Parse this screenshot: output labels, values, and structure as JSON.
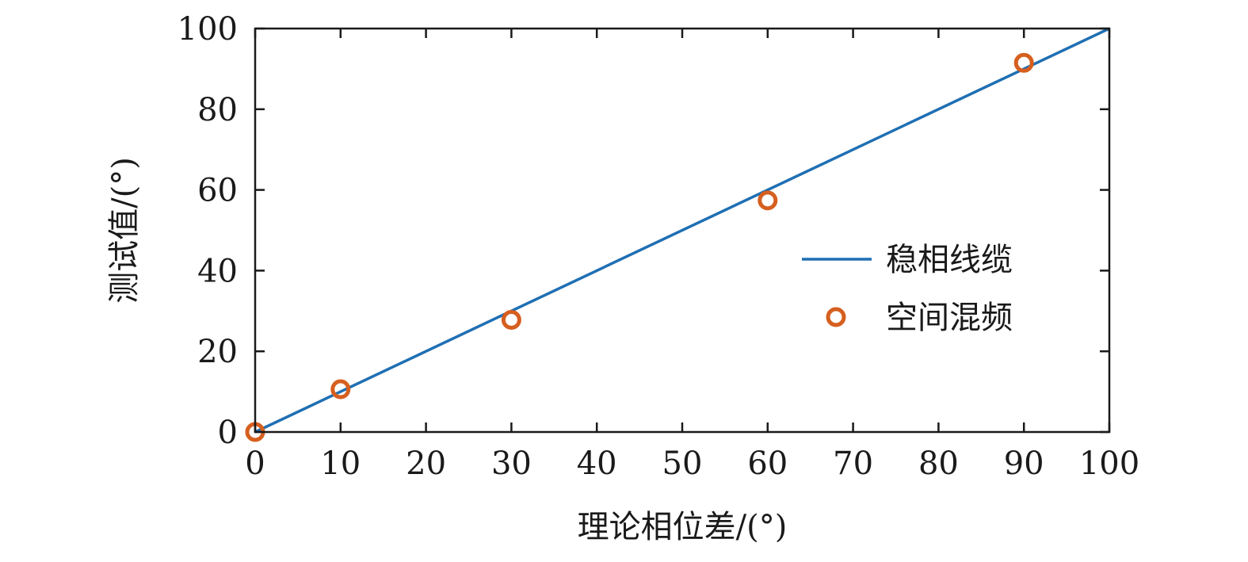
{
  "chart_data": {
    "type": "scatter",
    "xlabel": "理论相位差/(°)",
    "ylabel": "测试值/(°)",
    "xlim": [
      0,
      100
    ],
    "ylim": [
      0,
      100
    ],
    "x_ticks": [
      0,
      10,
      20,
      30,
      40,
      50,
      60,
      70,
      80,
      90,
      100
    ],
    "y_ticks": [
      0,
      20,
      40,
      60,
      80,
      100
    ],
    "x_tick_labels": [
      "0",
      "10",
      "20",
      "30",
      "40",
      "50",
      "60",
      "70",
      "80",
      "90",
      "100"
    ],
    "y_tick_labels": [
      "0",
      "20",
      "40",
      "60",
      "80",
      "100"
    ],
    "grid": false,
    "legend_position": "right",
    "series": [
      {
        "name": "稳相线缆",
        "kind": "line",
        "color": "#1f6fb3",
        "x": [
          0,
          100
        ],
        "y": [
          0,
          100
        ]
      },
      {
        "name": "空间混频",
        "kind": "marker",
        "marker": "circle-open",
        "color": "#d65f1f",
        "x": [
          0,
          10,
          30,
          60,
          90
        ],
        "y": [
          0,
          10.6,
          27.8,
          57.4,
          91.5
        ]
      }
    ]
  }
}
